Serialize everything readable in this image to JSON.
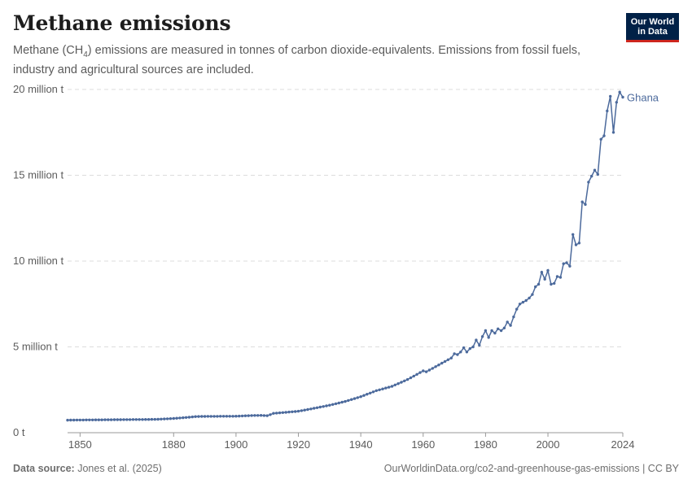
{
  "header": {
    "title": "Methane emissions",
    "subtitle_pre": "Methane (CH",
    "subtitle_sub": "4",
    "subtitle_post": ") emissions are measured in tonnes of carbon dioxide-equivalents. Emissions from fossil fuels, industry and agricultural sources are included.",
    "logo_line1": "Our World",
    "logo_line2": "in Data"
  },
  "footer": {
    "source_label": "Data source:",
    "source_value": "Jones et al. (2025)",
    "right": "OurWorldinData.org/co2-and-greenhouse-gas-emissions | CC BY"
  },
  "colors": {
    "series": "#4c6a9c",
    "grid": "#dddddd",
    "axis": "#666666",
    "text": "#5b5b5b"
  },
  "chart_data": {
    "type": "line",
    "title": "Methane emissions",
    "ylim": [
      0,
      20000000
    ],
    "xlim": [
      1846,
      2024
    ],
    "grid": "horizontal dashed",
    "y_ticks": [
      {
        "value": 0,
        "label": "0 t"
      },
      {
        "value": 5000000,
        "label": "5 million t"
      },
      {
        "value": 10000000,
        "label": "10 million t"
      },
      {
        "value": 15000000,
        "label": "15 million t"
      },
      {
        "value": 20000000,
        "label": "20 million t"
      }
    ],
    "x_ticks": [
      {
        "value": 1850,
        "label": "1850"
      },
      {
        "value": 1880,
        "label": "1880"
      },
      {
        "value": 1900,
        "label": "1900"
      },
      {
        "value": 1920,
        "label": "1920"
      },
      {
        "value": 1940,
        "label": "1940"
      },
      {
        "value": 1960,
        "label": "1960"
      },
      {
        "value": 1980,
        "label": "1980"
      },
      {
        "value": 2000,
        "label": "2000"
      },
      {
        "value": 2024,
        "label": "2024"
      }
    ],
    "series": [
      {
        "name": "Ghana",
        "anchors": [
          [
            1846,
            730000
          ],
          [
            1850,
            740000
          ],
          [
            1860,
            755000
          ],
          [
            1870,
            770000
          ],
          [
            1875,
            780000
          ],
          [
            1880,
            830000
          ],
          [
            1885,
            900000
          ],
          [
            1887,
            940000
          ],
          [
            1890,
            950000
          ],
          [
            1900,
            960000
          ],
          [
            1905,
            1000000
          ],
          [
            1908,
            1010000
          ],
          [
            1910,
            990000
          ],
          [
            1911,
            1050000
          ],
          [
            1912,
            1130000
          ],
          [
            1915,
            1170000
          ],
          [
            1920,
            1250000
          ],
          [
            1925,
            1420000
          ],
          [
            1930,
            1600000
          ],
          [
            1935,
            1820000
          ],
          [
            1940,
            2100000
          ],
          [
            1945,
            2450000
          ],
          [
            1950,
            2700000
          ],
          [
            1955,
            3100000
          ],
          [
            1960,
            3600000
          ],
          [
            1961,
            3550000
          ],
          [
            1963,
            3750000
          ],
          [
            1965,
            3950000
          ],
          [
            1967,
            4150000
          ],
          [
            1969,
            4350000
          ],
          [
            1970,
            4600000
          ],
          [
            1971,
            4550000
          ],
          [
            1972,
            4700000
          ],
          [
            1973,
            4950000
          ],
          [
            1974,
            4700000
          ],
          [
            1975,
            4900000
          ],
          [
            1976,
            5000000
          ],
          [
            1977,
            5400000
          ],
          [
            1978,
            5100000
          ],
          [
            1979,
            5600000
          ],
          [
            1980,
            5950000
          ],
          [
            1981,
            5550000
          ],
          [
            1982,
            5950000
          ],
          [
            1983,
            5800000
          ],
          [
            1984,
            6050000
          ],
          [
            1985,
            5950000
          ],
          [
            1986,
            6100000
          ],
          [
            1987,
            6450000
          ],
          [
            1988,
            6250000
          ],
          [
            1989,
            6750000
          ],
          [
            1990,
            7200000
          ],
          [
            1991,
            7500000
          ],
          [
            1992,
            7600000
          ],
          [
            1993,
            7700000
          ],
          [
            1994,
            7850000
          ],
          [
            1995,
            8050000
          ],
          [
            1996,
            8500000
          ],
          [
            1997,
            8650000
          ],
          [
            1998,
            9350000
          ],
          [
            1999,
            8950000
          ],
          [
            2000,
            9450000
          ],
          [
            2001,
            8650000
          ],
          [
            2002,
            8700000
          ],
          [
            2003,
            9100000
          ],
          [
            2004,
            9050000
          ],
          [
            2005,
            9850000
          ],
          [
            2006,
            9900000
          ],
          [
            2007,
            9700000
          ],
          [
            2008,
            11550000
          ],
          [
            2009,
            10950000
          ],
          [
            2010,
            11050000
          ],
          [
            2011,
            13450000
          ],
          [
            2012,
            13300000
          ],
          [
            2013,
            14600000
          ],
          [
            2014,
            14950000
          ],
          [
            2015,
            15300000
          ],
          [
            2016,
            15050000
          ],
          [
            2017,
            17100000
          ],
          [
            2018,
            17300000
          ],
          [
            2019,
            18750000
          ],
          [
            2020,
            19600000
          ],
          [
            2021,
            17500000
          ],
          [
            2022,
            19250000
          ],
          [
            2023,
            19850000
          ],
          [
            2024,
            19550000
          ]
        ]
      }
    ]
  }
}
